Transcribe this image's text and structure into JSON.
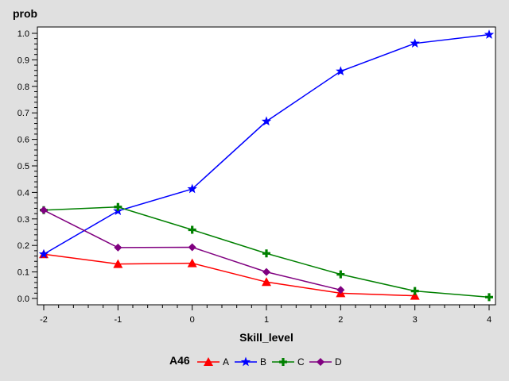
{
  "chart_data": {
    "type": "line",
    "ylabel": "prob",
    "xlabel": "Skill_level",
    "xlim": [
      -2,
      4
    ],
    "ylim": [
      0,
      1.0
    ],
    "x_ticks": [
      -2,
      -1,
      0,
      1,
      2,
      3,
      4
    ],
    "y_ticks": [
      0.0,
      0.1,
      0.2,
      0.3,
      0.4,
      0.5,
      0.6,
      0.7,
      0.8,
      0.9,
      1.0
    ],
    "grid": false,
    "legend": {
      "title": "A46",
      "placement": "bottom-center"
    },
    "series": [
      {
        "name": "A",
        "color": "#ff0000",
        "marker": "triangle",
        "x": [
          -2,
          -1,
          0,
          1,
          2,
          3
        ],
        "y": [
          0.167,
          0.13,
          0.133,
          0.062,
          0.02,
          0.01
        ]
      },
      {
        "name": "B",
        "color": "#0000ff",
        "marker": "star",
        "x": [
          -2,
          -1,
          0,
          1,
          2,
          3,
          4
        ],
        "y": [
          0.167,
          0.33,
          0.413,
          0.668,
          0.857,
          0.962,
          0.995
        ]
      },
      {
        "name": "C",
        "color": "#008000",
        "marker": "plus",
        "x": [
          -2,
          -1,
          0,
          1,
          2,
          3,
          4
        ],
        "y": [
          0.333,
          0.345,
          0.259,
          0.17,
          0.091,
          0.028,
          0.005
        ]
      },
      {
        "name": "D",
        "color": "#800080",
        "marker": "diamond",
        "x": [
          -2,
          -1,
          0,
          1,
          2
        ],
        "y": [
          0.333,
          0.192,
          0.193,
          0.1,
          0.032
        ]
      }
    ]
  }
}
